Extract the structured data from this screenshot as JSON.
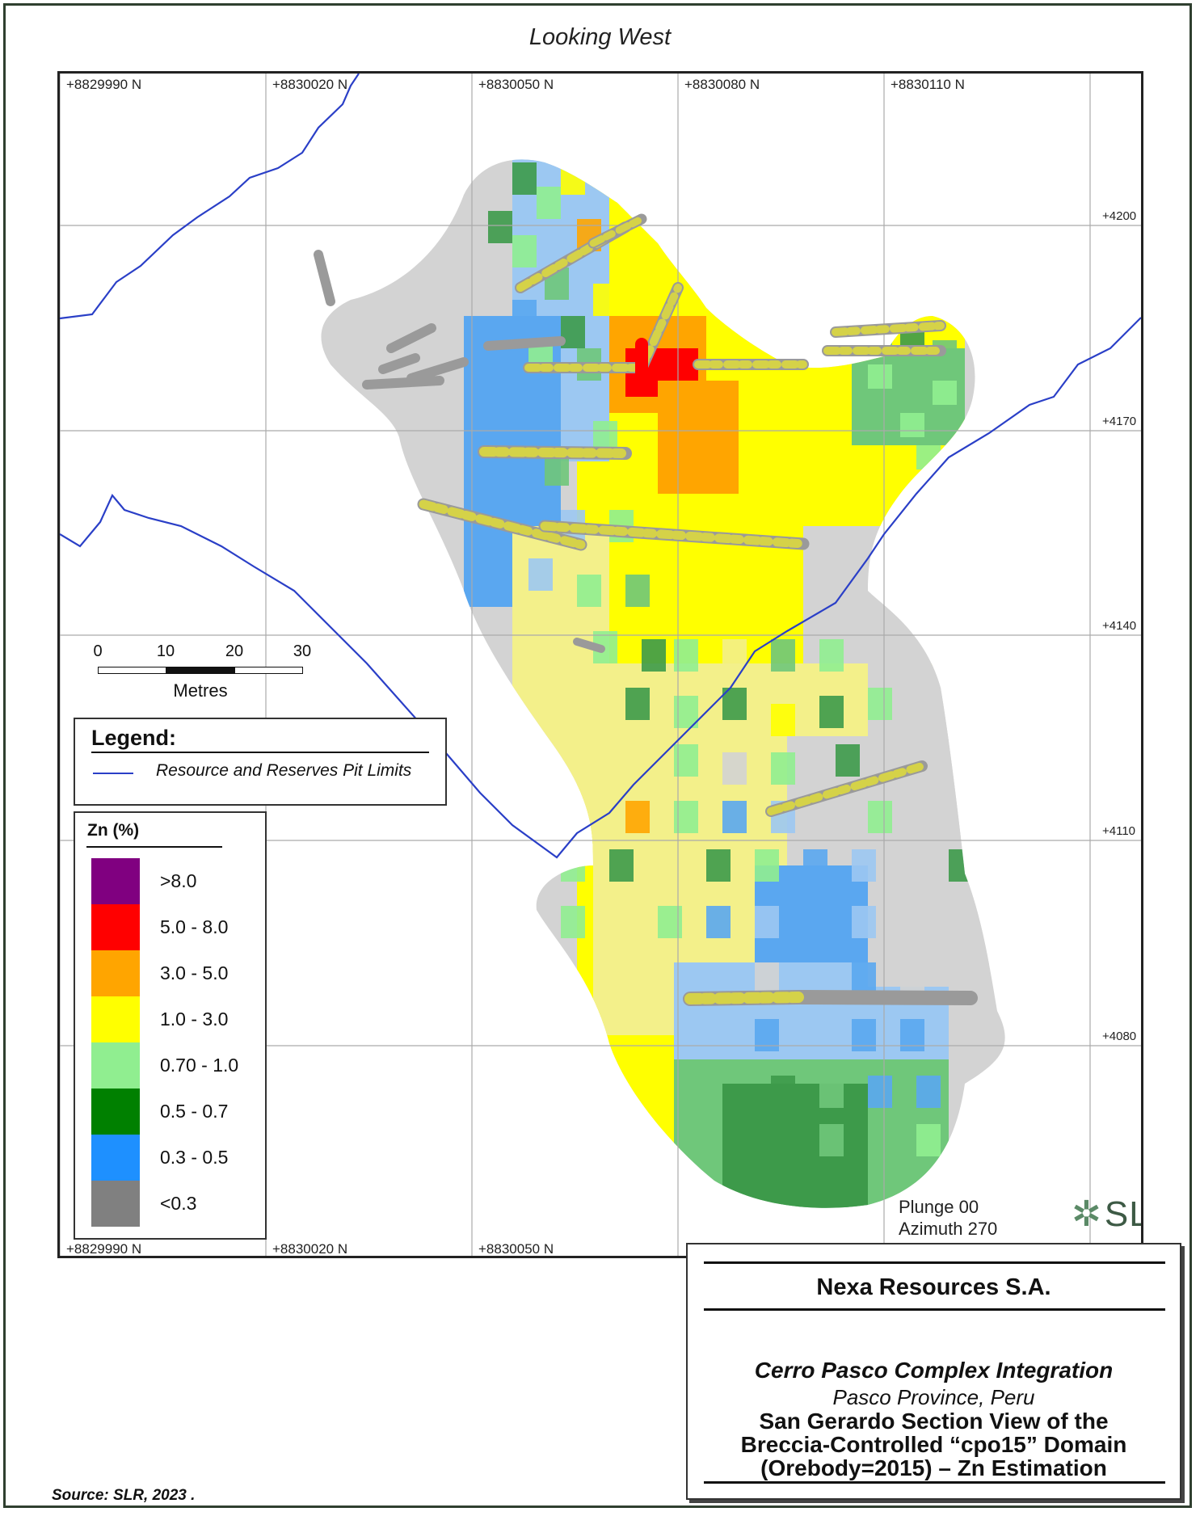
{
  "view_direction": "Looking West",
  "grid": {
    "northings_top": [
      "+8829990 N",
      "+8830020 N",
      "+8830050 N",
      "+8830080 N",
      "+8830110 N"
    ],
    "northings_bottom": [
      "+8829990 N",
      "+8830020 N",
      "+8830050 N"
    ],
    "elevations": [
      "+4200",
      "+4170",
      "+4140",
      "+4110",
      "+4080"
    ]
  },
  "scale_bar": {
    "ticks": [
      "0",
      "10",
      "20",
      "30"
    ],
    "unit": "Metres"
  },
  "legend": {
    "title": "Legend:",
    "items": [
      {
        "label": "Resource and Reserves Pit Limits",
        "color": "#2a3fc7"
      }
    ]
  },
  "zn_legend": {
    "title": "Zn (%)",
    "classes": [
      {
        "label": ">8.0",
        "color": "#800080"
      },
      {
        "label": "5.0 - 8.0",
        "color": "#ff0000"
      },
      {
        "label": "3.0 - 5.0",
        "color": "#ffa500"
      },
      {
        "label": "1.0 - 3.0",
        "color": "#ffff00"
      },
      {
        "label": "0.70 - 1.0",
        "color": "#90ee90"
      },
      {
        "label": "0.5 - 0.7",
        "color": "#008000"
      },
      {
        "label": "0.3 - 0.5",
        "color": "#1e90ff"
      },
      {
        "label": "<0.3",
        "color": "#808080"
      }
    ]
  },
  "orientation": {
    "plunge": "Plunge 00",
    "azimuth": "Azimuth 270"
  },
  "logo_text": "SLR",
  "title_block": {
    "company": "Nexa Resources S.A.",
    "project": "Cerro Pasco Complex Integration",
    "location": "Pasco Province, Peru",
    "figure_title_lines": [
      "San Gerardo Section View of the",
      "Breccia-Controlled “cpo15” Domain",
      "(Orebody=2015) – Zn Estimation"
    ]
  },
  "source": "Source:  SLR, 2023 ."
}
